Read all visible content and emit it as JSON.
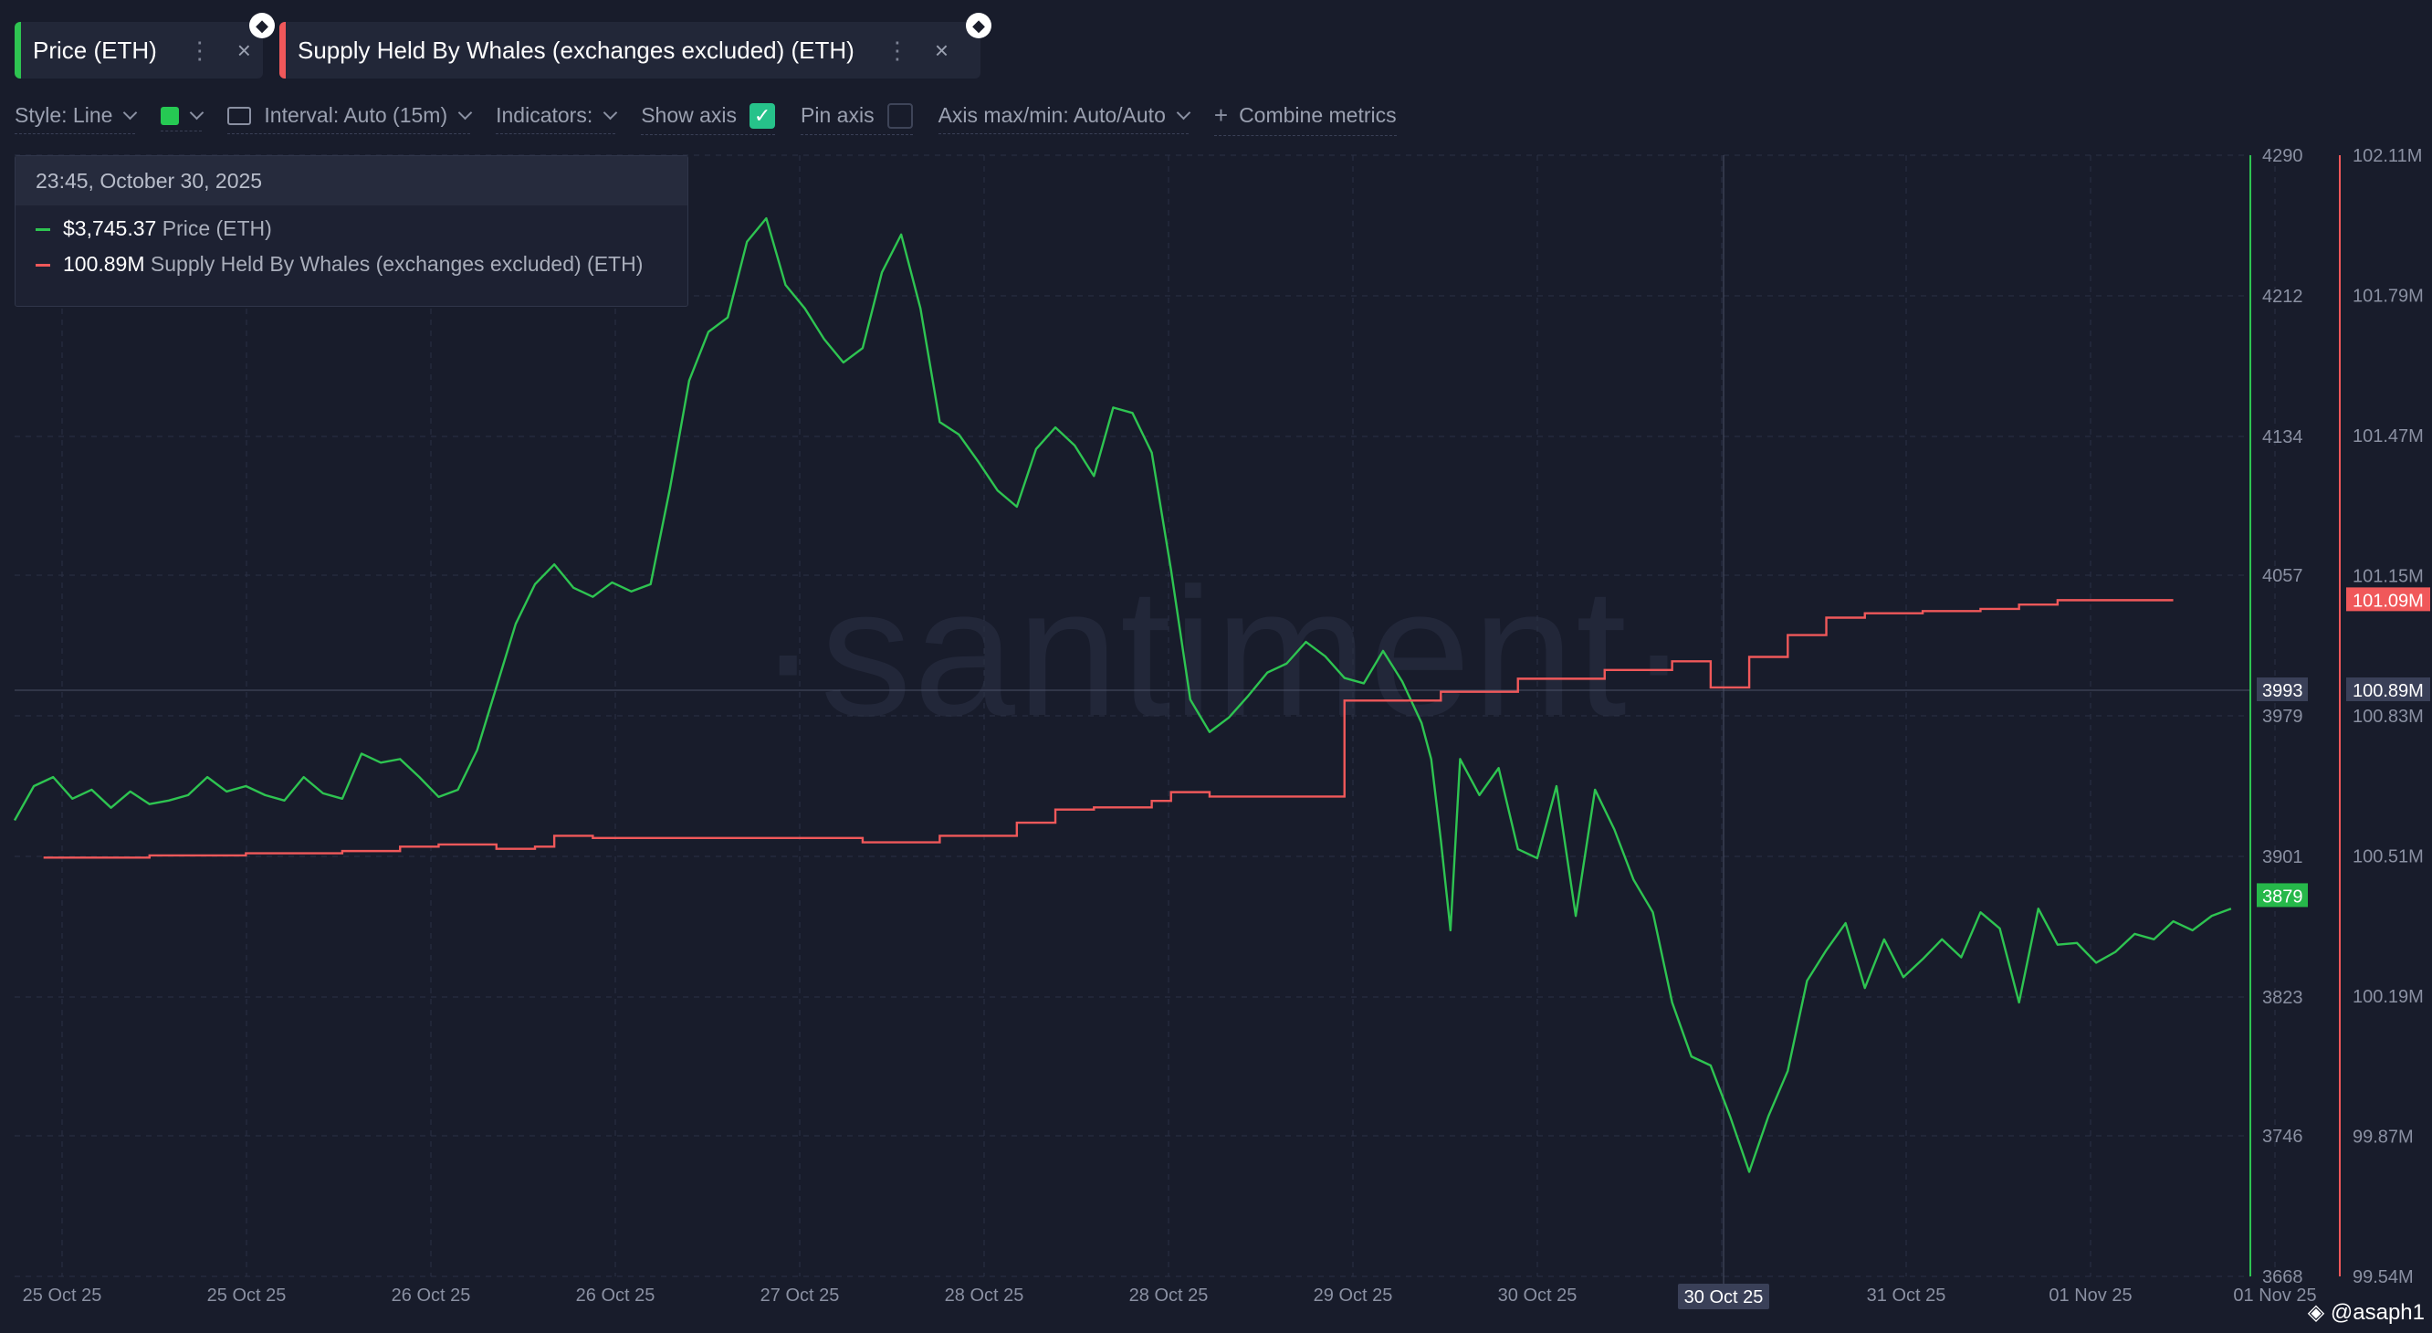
{
  "tabs": [
    {
      "label": "Price (ETH)",
      "color": "#2ec451",
      "menu_icon": "⋮",
      "close_icon": "×"
    },
    {
      "label": "Supply Held By Whales (exchanges excluded) (ETH)",
      "color": "#f0585a",
      "menu_icon": "⋮",
      "close_icon": "×"
    }
  ],
  "toolbar": {
    "style": "Style: Line",
    "interval": "Interval: Auto (15m)",
    "indicators": "Indicators:",
    "show_axis": "Show axis",
    "pin_axis": "Pin axis",
    "axis_maxmin": "Axis max/min: Auto/Auto",
    "combine": "Combine metrics",
    "check_glyph": "✓",
    "plus_glyph": "+"
  },
  "tooltip": {
    "date": "23:45, October 30, 2025",
    "price_value": "$3,745.37",
    "price_name": "Price (ETH)",
    "whale_value": "100.89M",
    "whale_name": "Supply Held By Whales (exchanges excluded) (ETH)"
  },
  "watermark": "·santiment·",
  "credit": "@asaph1",
  "colors": {
    "price": "#2ec451",
    "whales": "#f0585a",
    "background": "#181c2b"
  },
  "chart_data": {
    "type": "line",
    "x_ticks": [
      "25 Oct 25",
      "25 Oct 25",
      "26 Oct 25",
      "26 Oct 25",
      "27 Oct 25",
      "28 Oct 25",
      "28 Oct 25",
      "29 Oct 25",
      "30 Oct 25",
      "30 Oc",
      "31 Oct 25",
      "01 Nov 25",
      "01 Nov 25"
    ],
    "crosshair": {
      "x_label": "30 Oct 25",
      "price_label": "3993",
      "whale_label": "100.89M"
    },
    "y_left": {
      "ticks": [
        4290,
        4212,
        4134,
        4057,
        3979,
        3901,
        3823,
        3746,
        3668
      ],
      "range": [
        3668,
        4290
      ]
    },
    "y_right": {
      "ticks": [
        "102.11M",
        "101.79M",
        "101.47M",
        "101.15M",
        "100.83M",
        "100.51M",
        "100.19M",
        "99.87M",
        "99.54M"
      ],
      "range": [
        99.54,
        102.11
      ]
    },
    "last_values": {
      "price": "3879",
      "whales": "101.09M"
    },
    "series": [
      {
        "name": "Price (ETH)",
        "axis": "left",
        "points": [
          [
            0,
            3921
          ],
          [
            2,
            3940
          ],
          [
            4,
            3945
          ],
          [
            6,
            3933
          ],
          [
            8,
            3938
          ],
          [
            10,
            3928
          ],
          [
            12,
            3937
          ],
          [
            14,
            3930
          ],
          [
            16,
            3932
          ],
          [
            18,
            3935
          ],
          [
            20,
            3945
          ],
          [
            22,
            3937
          ],
          [
            24,
            3940
          ],
          [
            26,
            3935
          ],
          [
            28,
            3932
          ],
          [
            30,
            3945
          ],
          [
            32,
            3936
          ],
          [
            34,
            3933
          ],
          [
            36,
            3958
          ],
          [
            38,
            3953
          ],
          [
            40,
            3955
          ],
          [
            42,
            3945
          ],
          [
            44,
            3934
          ],
          [
            46,
            3938
          ],
          [
            48,
            3960
          ],
          [
            50,
            3995
          ],
          [
            52,
            4030
          ],
          [
            54,
            4052
          ],
          [
            56,
            4063
          ],
          [
            58,
            4050
          ],
          [
            60,
            4045
          ],
          [
            62,
            4053
          ],
          [
            64,
            4048
          ],
          [
            66,
            4052
          ],
          [
            68,
            4105
          ],
          [
            70,
            4165
          ],
          [
            72,
            4192
          ],
          [
            74,
            4200
          ],
          [
            76,
            4242
          ],
          [
            78,
            4255
          ],
          [
            80,
            4218
          ],
          [
            82,
            4205
          ],
          [
            84,
            4188
          ],
          [
            86,
            4175
          ],
          [
            88,
            4183
          ],
          [
            90,
            4225
          ],
          [
            92,
            4246
          ],
          [
            94,
            4205
          ],
          [
            96,
            4142
          ],
          [
            98,
            4135
          ],
          [
            100,
            4120
          ],
          [
            102,
            4104
          ],
          [
            104,
            4095
          ],
          [
            106,
            4127
          ],
          [
            108,
            4139
          ],
          [
            110,
            4129
          ],
          [
            112,
            4112
          ],
          [
            114,
            4150
          ],
          [
            116,
            4147
          ],
          [
            118,
            4125
          ],
          [
            120,
            4060
          ],
          [
            122,
            3988
          ],
          [
            124,
            3970
          ],
          [
            126,
            3978
          ],
          [
            128,
            3990
          ],
          [
            130,
            4003
          ],
          [
            132,
            4008
          ],
          [
            134,
            4020
          ],
          [
            136,
            4012
          ],
          [
            138,
            4000
          ],
          [
            140,
            3997
          ],
          [
            142,
            4015
          ],
          [
            144,
            3998
          ],
          [
            146,
            3975
          ],
          [
            147,
            3955
          ],
          [
            148,
            3910
          ],
          [
            149,
            3860
          ],
          [
            150,
            3955
          ],
          [
            152,
            3935
          ],
          [
            154,
            3950
          ],
          [
            156,
            3905
          ],
          [
            158,
            3900
          ],
          [
            160,
            3940
          ],
          [
            162,
            3868
          ],
          [
            164,
            3938
          ],
          [
            166,
            3916
          ],
          [
            168,
            3888
          ],
          [
            170,
            3870
          ],
          [
            172,
            3820
          ],
          [
            174,
            3790
          ],
          [
            176,
            3785
          ],
          [
            178,
            3757
          ],
          [
            180,
            3726
          ],
          [
            182,
            3757
          ],
          [
            184,
            3782
          ],
          [
            186,
            3832
          ],
          [
            188,
            3849
          ],
          [
            190,
            3864
          ],
          [
            192,
            3828
          ],
          [
            194,
            3855
          ],
          [
            196,
            3834
          ],
          [
            198,
            3844
          ],
          [
            200,
            3855
          ],
          [
            202,
            3845
          ],
          [
            204,
            3870
          ],
          [
            206,
            3861
          ],
          [
            208,
            3820
          ],
          [
            210,
            3872
          ],
          [
            212,
            3852
          ],
          [
            214,
            3853
          ],
          [
            216,
            3842
          ],
          [
            218,
            3848
          ],
          [
            220,
            3858
          ],
          [
            222,
            3855
          ],
          [
            224,
            3865
          ],
          [
            226,
            3860
          ],
          [
            228,
            3868
          ],
          [
            230,
            3872
          ]
        ]
      },
      {
        "name": "Supply Held By Whales (exchanges excluded) (ETH)",
        "axis": "right",
        "steps": [
          [
            3,
            100.5
          ],
          [
            14,
            100.505
          ],
          [
            24,
            100.51
          ],
          [
            34,
            100.515
          ],
          [
            40,
            100.525
          ],
          [
            44,
            100.53
          ],
          [
            50,
            100.52
          ],
          [
            54,
            100.525
          ],
          [
            56,
            100.55
          ],
          [
            60,
            100.545
          ],
          [
            88,
            100.535
          ],
          [
            96,
            100.55
          ],
          [
            104,
            100.58
          ],
          [
            108,
            100.61
          ],
          [
            112,
            100.615
          ],
          [
            118,
            100.63
          ],
          [
            120,
            100.65
          ],
          [
            124,
            100.64
          ],
          [
            138,
            100.86
          ],
          [
            148,
            100.88
          ],
          [
            156,
            100.91
          ],
          [
            165,
            100.93
          ],
          [
            172,
            100.95
          ],
          [
            176,
            100.89
          ],
          [
            180,
            100.96
          ],
          [
            184,
            101.01
          ],
          [
            188,
            101.05
          ],
          [
            192,
            101.06
          ],
          [
            198,
            101.065
          ],
          [
            204,
            101.07
          ],
          [
            208,
            101.08
          ],
          [
            212,
            101.09
          ],
          [
            224,
            101.09
          ]
        ]
      }
    ],
    "x_domain": [
      0,
      232
    ]
  }
}
